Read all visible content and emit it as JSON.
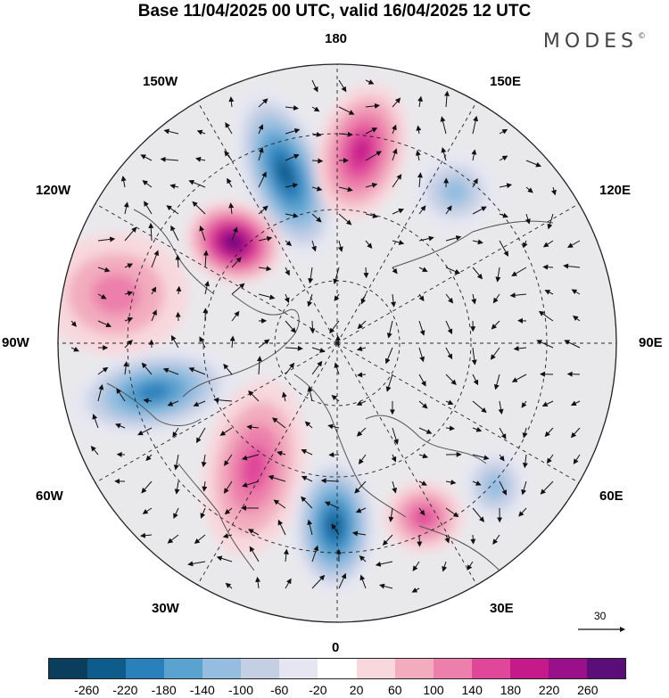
{
  "header": {
    "title": "Base 11/04/2025 00 UTC, valid 16/04/2025 12 UTC",
    "brand": "MODES"
  },
  "map": {
    "projection": "north polar stereographic",
    "longitude_labels": {
      "top": "180",
      "bottom": "0",
      "left": "90W",
      "right": "90E",
      "upper_left": "150W",
      "left_upper": "120W",
      "left_lower": "60W",
      "lower_left": "30W",
      "upper_right": "150E",
      "right_upper": "120E",
      "right_lower": "60E",
      "lower_right": "30E"
    },
    "vector_scale_label": "30",
    "anomalies": [
      {
        "sign": "negative",
        "region": "Alaska / Bering Sea",
        "peak": -220
      },
      {
        "sign": "positive",
        "region": "East Siberian Sea / Chukotka",
        "peak": 180
      },
      {
        "sign": "positive",
        "region": "Canadian Arctic / Beaufort Sea",
        "peak": 260
      },
      {
        "sign": "negative",
        "region": "Western Siberia / Barents Sea",
        "peak": -100
      },
      {
        "sign": "positive",
        "region": "Eastern Pacific / Northwest America",
        "peak": 100
      },
      {
        "sign": "negative",
        "region": "Hudson Bay / Labrador",
        "peak": -180
      },
      {
        "sign": "positive",
        "region": "Central North Atlantic",
        "peak": 140
      },
      {
        "sign": "negative",
        "region": "British Isles / Northeast Atlantic",
        "peak": -220
      },
      {
        "sign": "positive",
        "region": "Eastern Mediterranean / Black Sea",
        "peak": 140
      },
      {
        "sign": "negative",
        "region": "Central Asia",
        "peak": -100
      }
    ]
  },
  "colorbar": {
    "colors": [
      "#0b3e5c",
      "#0d5c8c",
      "#2a80bb",
      "#5aa2cf",
      "#94bde0",
      "#c4cfe4",
      "#e5e6f2",
      "#ffffff",
      "#f8d8dd",
      "#f2acbe",
      "#ec7fab",
      "#e0479a",
      "#c51a8a",
      "#9a0f8a",
      "#5b0d7a"
    ],
    "ticks": [
      "-260",
      "-220",
      "-180",
      "-140",
      "-100",
      "-60",
      "-20",
      "20",
      "60",
      "100",
      "140",
      "180",
      "220",
      "260"
    ]
  }
}
